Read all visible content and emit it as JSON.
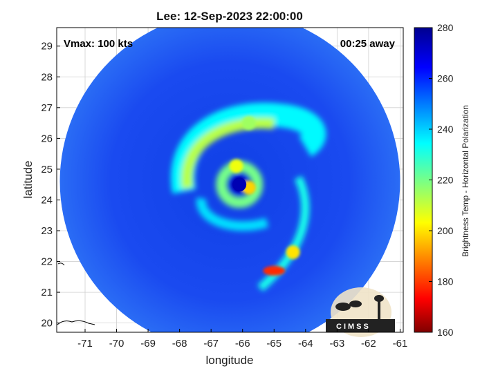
{
  "title": "Lee: 12-Sep-2023 22:00:00",
  "annotations": {
    "vmax": "Vmax: 100 kts",
    "time_away": "00:25 away"
  },
  "logo": {
    "text": "CIMSS"
  },
  "colors": {
    "cold": "#00008f",
    "mid": "#ffff00",
    "hot": "#800000",
    "frame": "#000000"
  },
  "chart_data": {
    "type": "heatmap",
    "xlabel": "longitude",
    "ylabel": "latitude",
    "xlim": [
      -71.9,
      -60.9
    ],
    "ylim": [
      19.7,
      29.6
    ],
    "xticks": [
      -71,
      -70,
      -69,
      -68,
      -67,
      -66,
      -65,
      -64,
      -63,
      -62,
      -61
    ],
    "yticks": [
      20,
      21,
      22,
      23,
      24,
      25,
      26,
      27,
      28,
      29
    ],
    "grid": true,
    "colorbar": {
      "label": "Brightness Temp - Horizontal Polarization",
      "min": 160,
      "max": 280,
      "ticks": [
        160,
        180,
        200,
        220,
        240,
        260,
        280
      ]
    },
    "storm_center": {
      "lon": -66.1,
      "lat": 24.5
    },
    "swath": {
      "center_lon": -66.4,
      "center_lat": 24.6,
      "radius_deg_lon": 5.4
    },
    "background_tb": 262,
    "features": [
      {
        "name": "eye",
        "lon": -66.1,
        "lat": 24.5,
        "tb": 275
      },
      {
        "name": "eyewall-warm-north",
        "lon": -66.2,
        "lat": 25.1,
        "tb": 205
      },
      {
        "name": "eyewall-warm-east",
        "lon": -65.8,
        "lat": 24.4,
        "tb": 198
      },
      {
        "name": "rainband-convective-core",
        "lon": -65.0,
        "lat": 21.7,
        "tb": 178
      },
      {
        "name": "rainband-south",
        "lon": -64.4,
        "lat": 22.3,
        "tb": 200
      },
      {
        "name": "outer-band-north",
        "lon": -65.8,
        "lat": 26.5,
        "tb": 215
      }
    ]
  }
}
